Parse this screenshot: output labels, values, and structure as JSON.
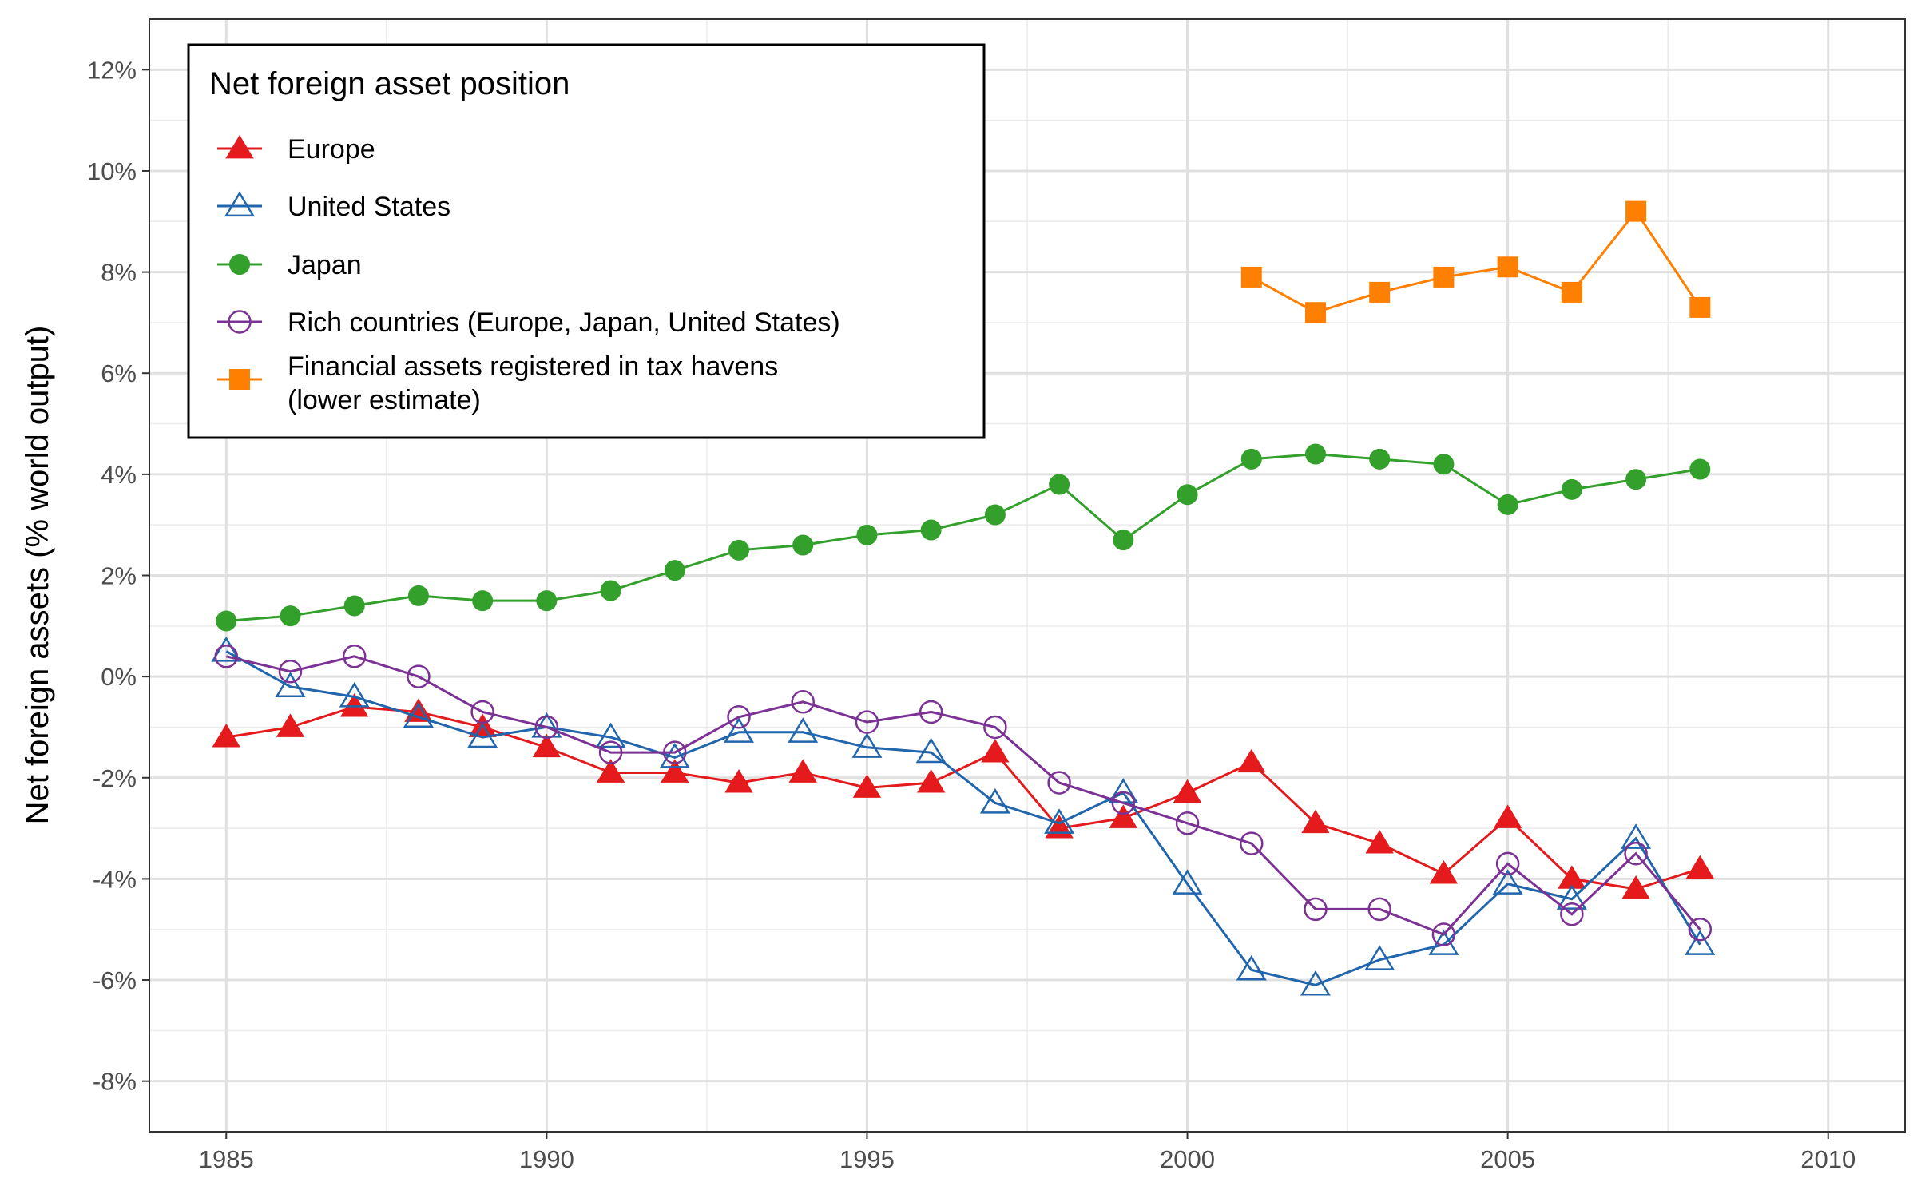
{
  "chart_data": {
    "type": "line",
    "xlabel": "",
    "ylabel": "Net foreign assets (% world output)",
    "xlim": [
      1983.8,
      2011.2
    ],
    "ylim": [
      -9.0,
      13.0
    ],
    "x_ticks": [
      1985,
      1990,
      1995,
      2000,
      2005,
      2010
    ],
    "x_tick_labels": [
      "1985",
      "1990",
      "1995",
      "2000",
      "2005",
      "2010"
    ],
    "y_ticks": [
      -8,
      -6,
      -4,
      -2,
      0,
      2,
      4,
      6,
      8,
      10,
      12
    ],
    "y_tick_labels": [
      "-8%",
      "-6%",
      "-4%",
      "-2%",
      "0%",
      "2%",
      "4%",
      "6%",
      "8%",
      "10%",
      "12%"
    ],
    "grid": true,
    "legend": {
      "title": "Net foreign asset position",
      "placement": "top-left",
      "entries": [
        [
          "Europe"
        ],
        [
          "United States"
        ],
        [
          "Japan"
        ],
        [
          "Rich countries (Europe, Japan, United States)"
        ],
        [
          "Financial assets registered in tax havens",
          "(lower estimate)"
        ]
      ]
    },
    "series": [
      {
        "name": "Europe",
        "color": "#e41a1c",
        "marker": "triangle-filled",
        "x": [
          1985,
          1986,
          1987,
          1988,
          1989,
          1990,
          1991,
          1992,
          1993,
          1994,
          1995,
          1996,
          1997,
          1998,
          1999,
          2000,
          2001,
          2002,
          2003,
          2004,
          2005,
          2006,
          2007,
          2008
        ],
        "values": [
          -1.2,
          -1.0,
          -0.6,
          -0.7,
          -1.0,
          -1.4,
          -1.9,
          -1.9,
          -2.1,
          -1.9,
          -2.2,
          -2.1,
          -1.5,
          -3.0,
          -2.8,
          -2.3,
          -1.7,
          -2.9,
          -3.3,
          -3.9,
          -2.8,
          -4.0,
          -4.2,
          -3.8
        ]
      },
      {
        "name": "United States",
        "color": "#2166ac",
        "marker": "triangle-open",
        "x": [
          1985,
          1986,
          1987,
          1988,
          1989,
          1990,
          1991,
          1992,
          1993,
          1994,
          1995,
          1996,
          1997,
          1998,
          1999,
          2000,
          2001,
          2002,
          2003,
          2004,
          2005,
          2006,
          2007,
          2008
        ],
        "values": [
          0.5,
          -0.2,
          -0.4,
          -0.8,
          -1.2,
          -1.0,
          -1.2,
          -1.6,
          -1.1,
          -1.1,
          -1.4,
          -1.5,
          -2.5,
          -2.9,
          -2.3,
          -4.1,
          -5.8,
          -6.1,
          -5.6,
          -5.3,
          -4.1,
          -4.4,
          -3.2,
          -5.3
        ]
      },
      {
        "name": "Japan",
        "color": "#33a02c",
        "marker": "circle-filled",
        "x": [
          1985,
          1986,
          1987,
          1988,
          1989,
          1990,
          1991,
          1992,
          1993,
          1994,
          1995,
          1996,
          1997,
          1998,
          1999,
          2000,
          2001,
          2002,
          2003,
          2004,
          2005,
          2006,
          2007,
          2008
        ],
        "values": [
          1.1,
          1.2,
          1.4,
          1.6,
          1.5,
          1.5,
          1.7,
          2.1,
          2.5,
          2.6,
          2.8,
          2.9,
          3.2,
          3.8,
          2.7,
          3.6,
          4.3,
          4.4,
          4.3,
          4.2,
          3.4,
          3.7,
          3.9,
          4.1
        ]
      },
      {
        "name": "Rich countries (Europe, Japan, United States)",
        "color": "#7b3294",
        "marker": "circle-open",
        "x": [
          1985,
          1986,
          1987,
          1988,
          1989,
          1990,
          1991,
          1992,
          1993,
          1994,
          1995,
          1996,
          1997,
          1998,
          1999,
          2000,
          2001,
          2002,
          2003,
          2004,
          2005,
          2006,
          2007,
          2008
        ],
        "values": [
          0.4,
          0.1,
          0.4,
          0.0,
          -0.7,
          -1.0,
          -1.5,
          -1.5,
          -0.8,
          -0.5,
          -0.9,
          -0.7,
          -1.0,
          -2.1,
          -2.5,
          -2.9,
          -3.3,
          -4.6,
          -4.6,
          -5.1,
          -3.7,
          -4.7,
          -3.5,
          -5.0
        ]
      },
      {
        "name": "Financial assets registered in tax havens (lower estimate)",
        "color": "#ff7f00",
        "marker": "square-filled",
        "x": [
          2001,
          2002,
          2003,
          2004,
          2005,
          2006,
          2007,
          2008
        ],
        "values": [
          7.9,
          7.2,
          7.6,
          7.9,
          8.1,
          7.6,
          9.2,
          7.3
        ]
      }
    ]
  }
}
